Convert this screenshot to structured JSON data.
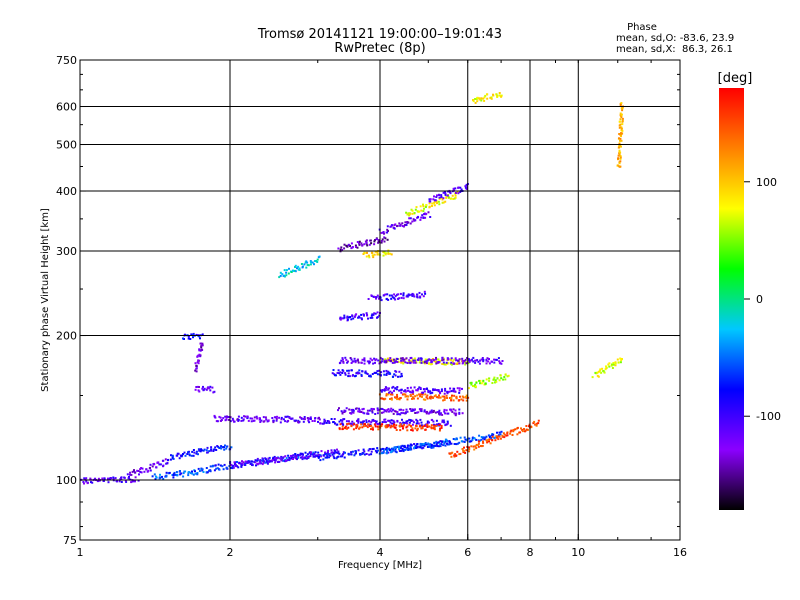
{
  "header": {
    "title_line1": "Tromsø 20141121 19:00:00–19:01:43",
    "title_line2": "RwPretec (8p)"
  },
  "phase_box": {
    "heading": "Phase",
    "line_o": "mean, sd,O: -83.6, 23.9",
    "line_x": "mean, sd,X:  86.3, 26.1"
  },
  "colorbar": {
    "unit": "[deg]",
    "range": [
      -180,
      180
    ],
    "ticks": [
      {
        "value": 100,
        "label": "100"
      },
      {
        "value": 0,
        "label": "0"
      },
      {
        "value": -100,
        "label": "-100"
      }
    ],
    "colors": [
      "#000000",
      "#8b00ff",
      "#0000ff",
      "#00c8ff",
      "#00ff00",
      "#ffff00",
      "#ff8000",
      "#ff0000"
    ]
  },
  "chart_data": {
    "type": "scatter",
    "title": "Tromsø 20141121 19:00:00–19:01:43",
    "subtitle": "RwPretec (8p)",
    "xlabel": "Frequency [MHz]",
    "ylabel": "Stationary phase Virtual Height [km]",
    "x_scale": "log2",
    "y_scale": "log",
    "xlim": [
      1,
      16
    ],
    "ylim": [
      75,
      750
    ],
    "x_ticks": [
      {
        "value": 1,
        "label": "1"
      },
      {
        "value": 2,
        "label": "2"
      },
      {
        "value": 4,
        "label": "4"
      },
      {
        "value": 6,
        "label": "6"
      },
      {
        "value": 8,
        "label": "8"
      },
      {
        "value": 10,
        "label": "10"
      },
      {
        "value": 16,
        "label": "16"
      }
    ],
    "y_ticks": [
      {
        "value": 75,
        "label": "75"
      },
      {
        "value": 100,
        "label": "100"
      },
      {
        "value": 200,
        "label": "200"
      },
      {
        "value": 300,
        "label": "300"
      },
      {
        "value": 400,
        "label": "400"
      },
      {
        "value": 500,
        "label": "500"
      },
      {
        "value": 600,
        "label": "600"
      },
      {
        "value": 750,
        "label": "750"
      }
    ],
    "x_gridlines": [
      2,
      4,
      6,
      8,
      10
    ],
    "y_gridlines": [
      100,
      200,
      300,
      400,
      500,
      600
    ],
    "grid": true,
    "color_variable": "Phase [deg]",
    "traces": [
      {
        "x": [
          1.0,
          1.3
        ],
        "y": [
          100,
          101
        ],
        "phase": -110
      },
      {
        "x": [
          1.25,
          1.5
        ],
        "y": [
          103,
          110
        ],
        "phase": -120
      },
      {
        "x": [
          1.4,
          1.8
        ],
        "y": [
          102,
          105
        ],
        "phase": -60
      },
      {
        "x": [
          1.5,
          2.0
        ],
        "y": [
          112,
          118
        ],
        "phase": -75
      },
      {
        "x": [
          1.8,
          3.0
        ],
        "y": [
          106,
          114
        ],
        "phase": -70
      },
      {
        "x": [
          2.0,
          3.3
        ],
        "y": [
          108,
          115
        ],
        "phase": -110
      },
      {
        "x": [
          3.0,
          5.5
        ],
        "y": [
          112,
          120
        ],
        "phase": -80
      },
      {
        "x": [
          4.0,
          7.0
        ],
        "y": [
          115,
          125
        ],
        "phase": -60
      },
      {
        "x": [
          1.85,
          3.0
        ],
        "y": [
          135,
          134
        ],
        "phase": -115
      },
      {
        "x": [
          3.0,
          5.5
        ],
        "y": [
          133,
          132
        ],
        "phase": -100
      },
      {
        "x": [
          5.5,
          8.3
        ],
        "y": [
          113,
          132
        ],
        "phase": 150
      },
      {
        "x": [
          3.3,
          5.3
        ],
        "y": [
          130,
          129
        ],
        "phase": 160
      },
      {
        "x": [
          3.3,
          5.8
        ],
        "y": [
          140,
          139
        ],
        "phase": -120
      },
      {
        "x": [
          4.0,
          6.0
        ],
        "y": [
          150,
          149
        ],
        "phase": 140
      },
      {
        "x": [
          4.0,
          5.8
        ],
        "y": [
          155,
          154
        ],
        "phase": -110
      },
      {
        "x": [
          3.2,
          4.4
        ],
        "y": [
          168,
          167
        ],
        "phase": -90
      },
      {
        "x": [
          4.0,
          6.0
        ],
        "y": [
          178,
          177
        ],
        "phase": 80
      },
      {
        "x": [
          3.3,
          6.0
        ],
        "y": [
          178,
          178
        ],
        "phase": -120
      },
      {
        "x": [
          6.0,
          7.2
        ],
        "y": [
          158,
          165
        ],
        "phase": 60
      },
      {
        "x": [
          6.0,
          7.0
        ],
        "y": [
          178,
          178
        ],
        "phase": -110
      },
      {
        "x": [
          2.5,
          3.0
        ],
        "y": [
          268,
          290
        ],
        "phase": -20
      },
      {
        "x": [
          3.3,
          4.1
        ],
        "y": [
          305,
          320
        ],
        "phase": -140
      },
      {
        "x": [
          3.7,
          4.2
        ],
        "y": [
          295,
          300
        ],
        "phase": 90
      },
      {
        "x": [
          4.0,
          5.0
        ],
        "y": [
          330,
          360
        ],
        "phase": -120
      },
      {
        "x": [
          4.5,
          5.7
        ],
        "y": [
          360,
          395
        ],
        "phase": 75
      },
      {
        "x": [
          5.0,
          6.0
        ],
        "y": [
          385,
          410
        ],
        "phase": -110
      },
      {
        "x": [
          3.3,
          4.0
        ],
        "y": [
          218,
          222
        ],
        "phase": -100
      },
      {
        "x": [
          3.8,
          4.9
        ],
        "y": [
          240,
          245
        ],
        "phase": -100
      },
      {
        "x": [
          1.6,
          1.75
        ],
        "y": [
          200,
          200
        ],
        "phase": -80
      },
      {
        "x": [
          1.7,
          1.75
        ],
        "y": [
          170,
          195
        ],
        "phase": -130
      },
      {
        "x": [
          1.7,
          1.85
        ],
        "y": [
          155,
          155
        ],
        "phase": -115
      },
      {
        "x": [
          6.1,
          7.0
        ],
        "y": [
          620,
          640
        ],
        "phase": 80
      },
      {
        "x": [
          10.7,
          12.2
        ],
        "y": [
          165,
          180
        ],
        "phase": 70
      },
      {
        "x": [
          12.0,
          12.2
        ],
        "y": [
          450,
          610
        ],
        "phase": 110
      }
    ]
  }
}
